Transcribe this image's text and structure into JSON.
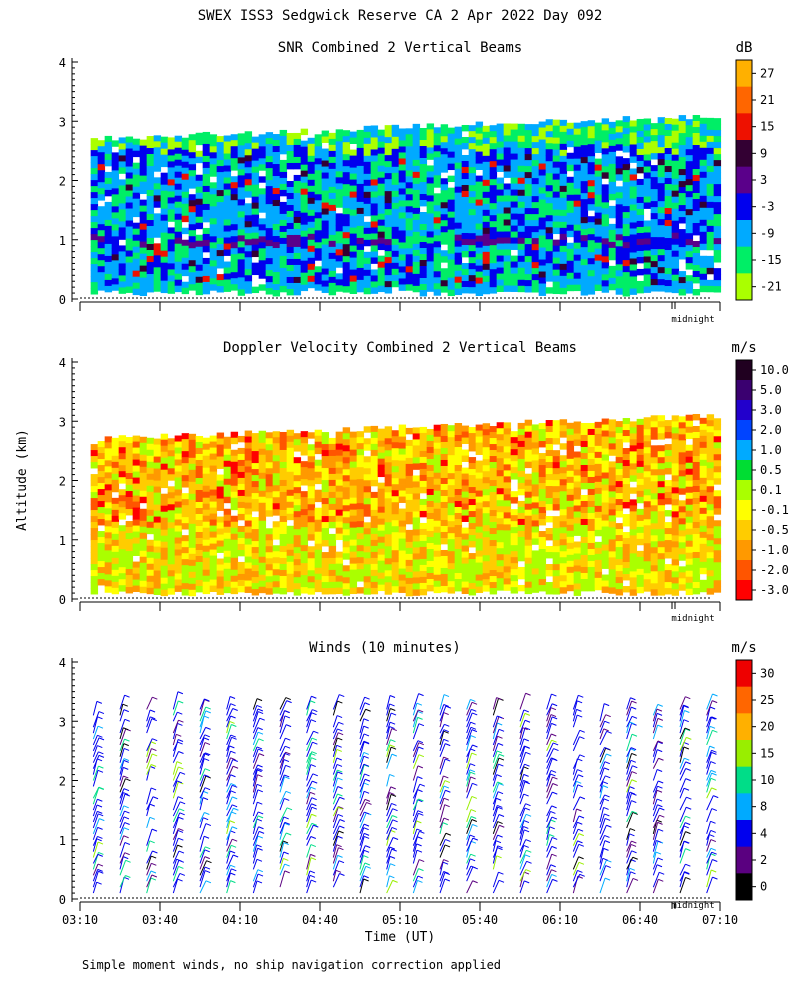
{
  "title": "SWEX ISS3 Sedgwick Reserve CA   2 Apr 2022 Day 092",
  "footnote": "Simple moment winds, no ship navigation correction applied",
  "chart_data": [
    {
      "type": "heatmap",
      "title": "SNR Combined 2 Vertical Beams",
      "xlabel": "",
      "ylabel": "",
      "ylim": [
        0,
        4
      ],
      "y_ticks": [
        "0",
        "1",
        "2",
        "3",
        "4"
      ],
      "x_range_minutes": [
        190,
        430
      ],
      "midnight_label": "midnight",
      "data_top_km": 2.7,
      "colorbar": {
        "unit": "dB",
        "labels": [
          "27",
          "21",
          "15",
          "9",
          "3",
          "-3",
          "-9",
          "-15",
          "-21"
        ],
        "colors": [
          "#ffb000",
          "#ff6600",
          "#ee1100",
          "#330033",
          "#5a008a",
          "#0000ee",
          "#00aaff",
          "#00ee66",
          "#aaff00"
        ]
      },
      "dominant_band_km": [
        0.95,
        1.1
      ]
    },
    {
      "type": "heatmap",
      "title": "Doppler Velocity Combined 2 Vertical Beams",
      "xlabel": "",
      "ylabel": "Altitude (km)",
      "ylim": [
        0,
        4
      ],
      "y_ticks": [
        "0",
        "1",
        "2",
        "3",
        "4"
      ],
      "x_range_minutes": [
        190,
        430
      ],
      "midnight_label": "midnight",
      "data_top_km": 2.7,
      "colorbar": {
        "unit": "m/s",
        "labels": [
          "10.0",
          "5.0",
          "3.0",
          "2.0",
          "1.0",
          "0.5",
          "0.1",
          "-0.1",
          "-0.5",
          "-1.0",
          "-2.0",
          "-3.0"
        ],
        "colors": [
          "#200020",
          "#3a0070",
          "#2200cc",
          "#0044ff",
          "#00aaff",
          "#00dd33",
          "#aaff00",
          "#ffff00",
          "#ffcc00",
          "#ff9900",
          "#ff5500",
          "#ff0000"
        ]
      }
    },
    {
      "type": "scatter",
      "title": "Winds (10 minutes)",
      "xlabel": "Time (UT)",
      "ylabel": "",
      "ylim": [
        0,
        4
      ],
      "y_ticks": [
        "0",
        "1",
        "2",
        "3",
        "4"
      ],
      "x_range_minutes": [
        190,
        430
      ],
      "x_ticks": [
        "03:10",
        "03:40",
        "04:10",
        "04:40",
        "05:10",
        "05:40",
        "06:10",
        "06:40",
        "07:10"
      ],
      "midnight_label": "midnight",
      "colorbar": {
        "unit": "m/s",
        "labels": [
          "30",
          "25",
          "20",
          "15",
          "10",
          "8",
          "4",
          "2",
          "0"
        ],
        "colors": [
          "#ee0000",
          "#ff6600",
          "#ffb000",
          "#99ee00",
          "#00dd88",
          "#00aaff",
          "#0000ee",
          "#5a0080",
          "#000000"
        ]
      },
      "profile_interval_minutes": 10,
      "profile_count": 24
    }
  ]
}
